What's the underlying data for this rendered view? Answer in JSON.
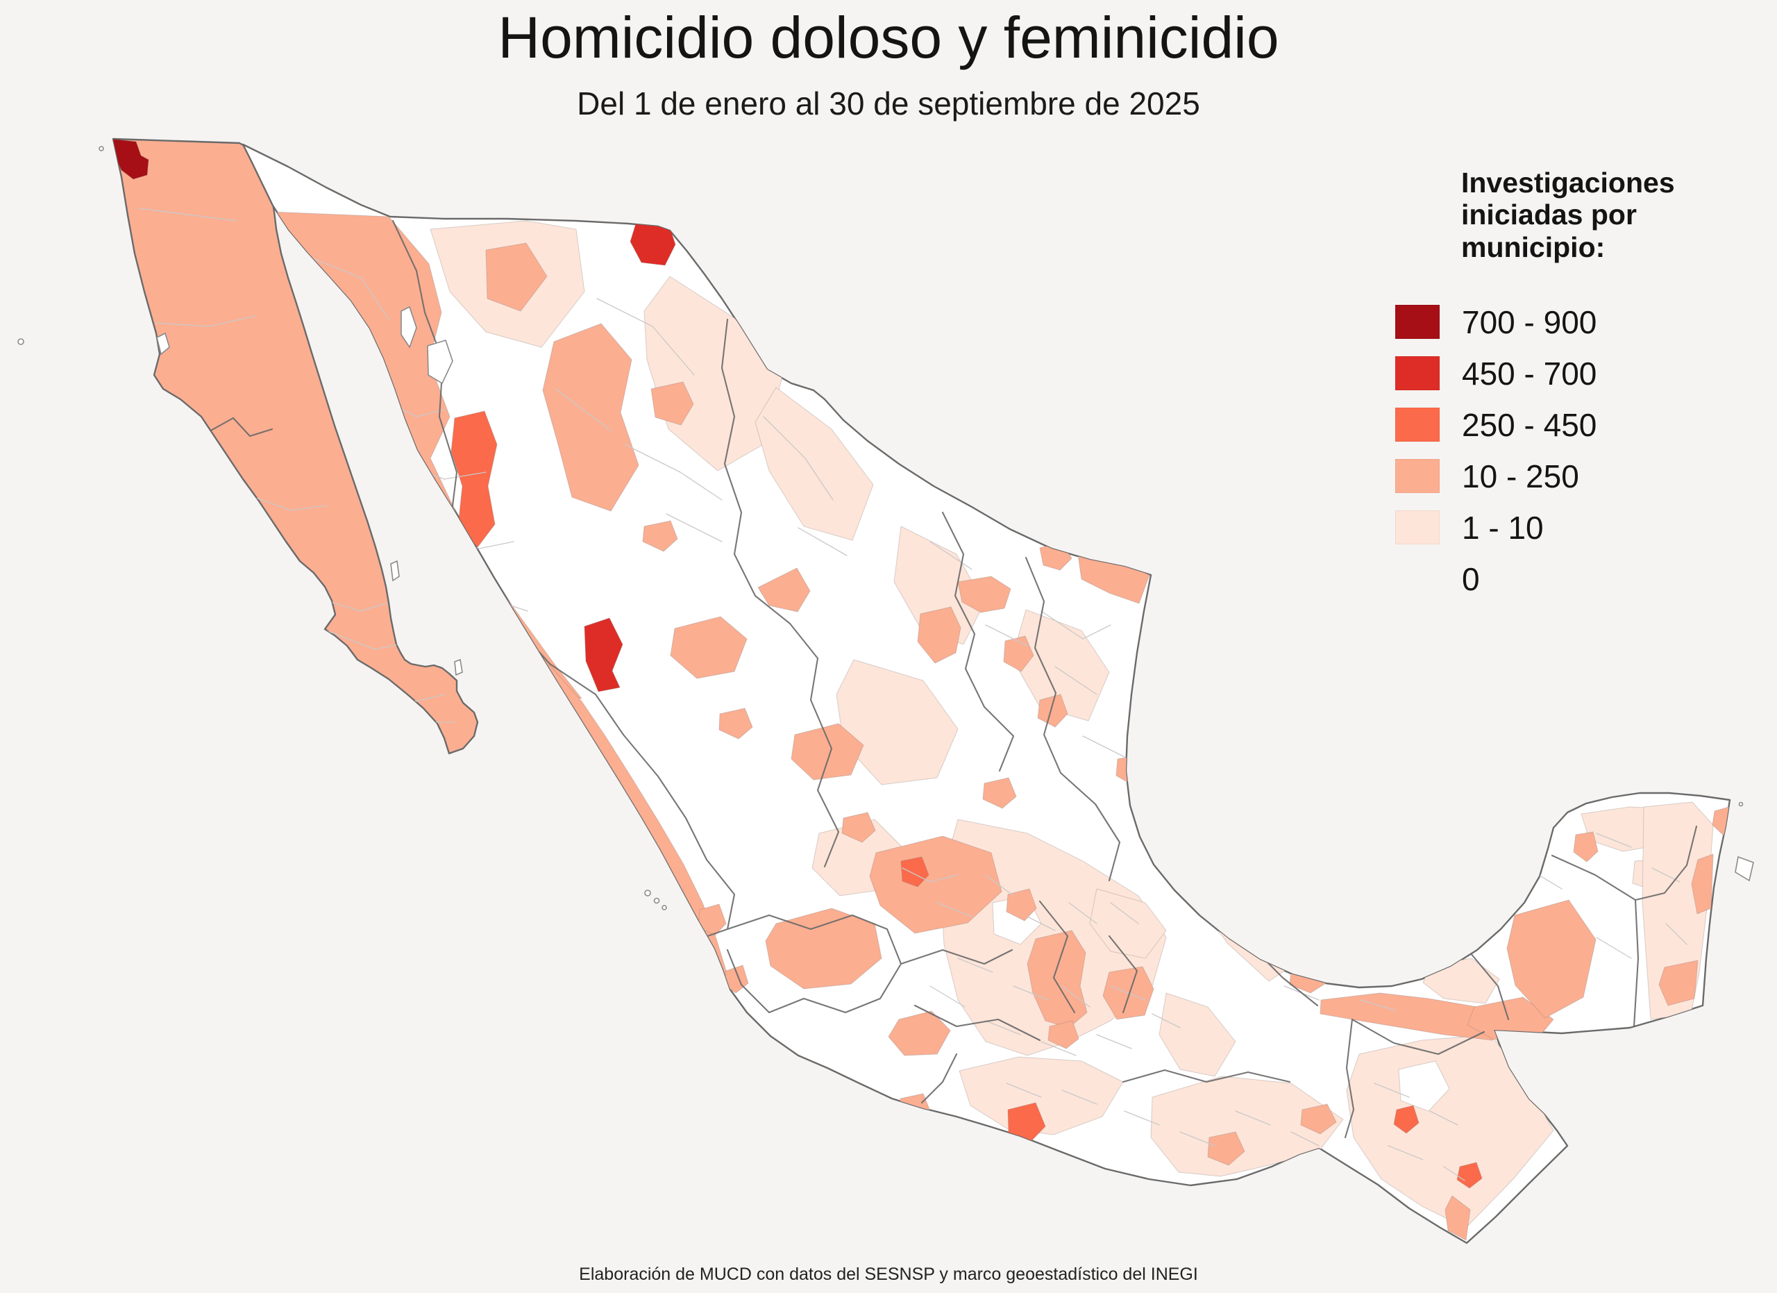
{
  "title": "Homicidio doloso y feminicidio",
  "subtitle": "Del 1 de enero al 30 de septiembre de 2025",
  "legend": {
    "title": "Investigaciones iniciadas por municipio:",
    "classes": [
      {
        "label": "700 - 900",
        "color": "#a50f15",
        "swatch": true
      },
      {
        "label": "450 - 700",
        "color": "#de2d26",
        "swatch": true
      },
      {
        "label": "250 - 450",
        "color": "#fb6a4a",
        "swatch": true
      },
      {
        "label": "10 - 250",
        "color": "#fcae91",
        "swatch": true
      },
      {
        "label": "1 - 10",
        "color": "#fee5d9",
        "swatch": true
      },
      {
        "label": "0",
        "color": "#ffffff",
        "swatch": false
      }
    ]
  },
  "footer": "Elaboración de MUCD con datos del SESNSP y marco geoestadístico del INEGI",
  "map": {
    "type": "choropleth",
    "region": "México (por municipio)",
    "background": "#f5f4f2",
    "state_border": "#6a6a6a",
    "municipal_border": "#c9c9c9",
    "palette": {
      "c0": "#ffffff",
      "c1": "#fee5d9",
      "c2": "#fcae91",
      "c3": "#fb6a4a",
      "c4": "#de2d26",
      "c5": "#a50f15"
    }
  }
}
